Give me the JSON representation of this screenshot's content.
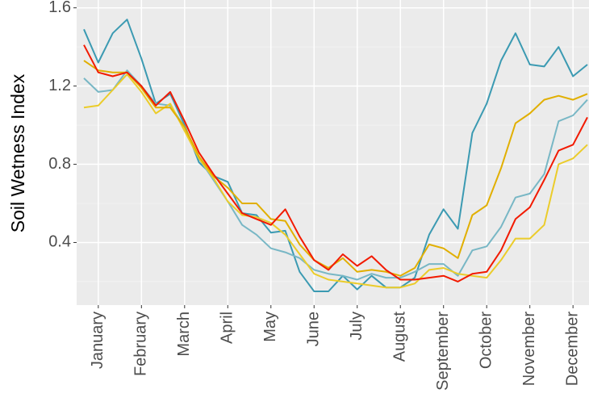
{
  "chart_data": {
    "type": "line",
    "y_label": "Soil Wetness Index",
    "categories": [
      null,
      "January",
      null,
      null,
      "February",
      null,
      null,
      "March",
      null,
      null,
      "April",
      null,
      null,
      "May",
      null,
      null,
      "June",
      null,
      null,
      "July",
      null,
      null,
      "August",
      null,
      null,
      "September",
      null,
      null,
      "October",
      null,
      null,
      "November",
      null,
      null,
      "December",
      null
    ],
    "series": [
      {
        "color": "#3b9ab2",
        "values": [
          1.49,
          1.32,
          1.47,
          1.54,
          1.34,
          1.11,
          1.16,
          1.0,
          0.81,
          0.74,
          0.71,
          0.55,
          0.54,
          0.45,
          0.46,
          0.25,
          0.15,
          0.15,
          0.23,
          0.16,
          0.23,
          0.17,
          0.17,
          0.22,
          0.44,
          0.57,
          0.47,
          0.96,
          1.11,
          1.33,
          1.47,
          1.31,
          1.3,
          1.4,
          1.25,
          1.31
        ]
      },
      {
        "color": "#78b7c5",
        "values": [
          1.24,
          1.17,
          1.18,
          1.28,
          1.2,
          1.11,
          1.1,
          0.99,
          0.83,
          0.72,
          0.61,
          0.49,
          0.44,
          0.37,
          0.35,
          0.32,
          0.26,
          0.24,
          0.23,
          0.21,
          0.24,
          0.22,
          0.22,
          0.25,
          0.29,
          0.29,
          0.23,
          0.36,
          0.38,
          0.48,
          0.63,
          0.65,
          0.75,
          1.02,
          1.05,
          1.13
        ]
      },
      {
        "color": "#ebcc2a",
        "values": [
          1.09,
          1.1,
          1.18,
          1.26,
          1.17,
          1.06,
          1.11,
          0.97,
          0.83,
          0.73,
          0.61,
          0.54,
          0.53,
          0.5,
          0.44,
          0.34,
          0.24,
          0.21,
          0.2,
          0.19,
          0.18,
          0.17,
          0.17,
          0.19,
          0.26,
          0.27,
          0.24,
          0.23,
          0.22,
          0.31,
          0.42,
          0.42,
          0.49,
          0.8,
          0.83,
          0.9
        ]
      },
      {
        "color": "#e1af00",
        "values": [
          1.33,
          1.28,
          1.27,
          1.27,
          1.19,
          1.09,
          1.09,
          0.99,
          0.84,
          0.74,
          0.68,
          0.6,
          0.6,
          0.52,
          0.51,
          0.39,
          0.31,
          0.27,
          0.32,
          0.25,
          0.26,
          0.25,
          0.23,
          0.27,
          0.39,
          0.37,
          0.32,
          0.54,
          0.59,
          0.78,
          1.01,
          1.06,
          1.13,
          1.15,
          1.13,
          1.16
        ]
      },
      {
        "color": "#f21a00",
        "values": [
          1.41,
          1.27,
          1.25,
          1.27,
          1.2,
          1.1,
          1.17,
          1.02,
          0.86,
          0.75,
          0.65,
          0.55,
          0.52,
          0.49,
          0.57,
          0.43,
          0.31,
          0.26,
          0.34,
          0.28,
          0.33,
          0.26,
          0.21,
          0.21,
          0.22,
          0.23,
          0.2,
          0.24,
          0.25,
          0.36,
          0.52,
          0.58,
          0.72,
          0.87,
          0.9,
          1.04
        ]
      }
    ],
    "ylim": [
      0.08,
      1.64
    ],
    "yticks": [
      0.4,
      0.8,
      1.2,
      1.6
    ],
    "grid": true
  }
}
